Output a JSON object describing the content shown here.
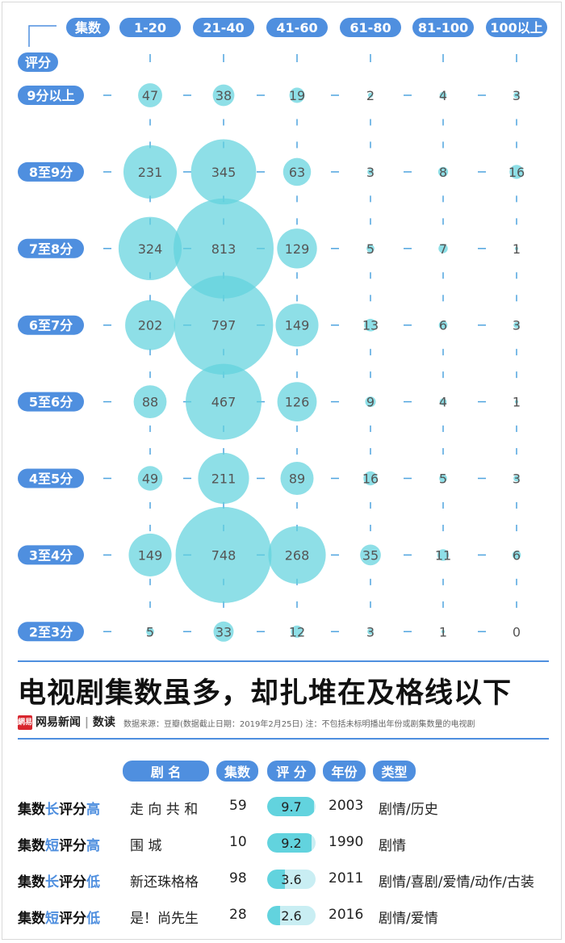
{
  "chart_data": {
    "type": "bubble-matrix",
    "corner_label": "集数",
    "row_axis_label": "评分",
    "columns": [
      "1-20",
      "21-40",
      "41-60",
      "61-80",
      "81-100",
      "100以上"
    ],
    "rows": [
      "9分以上",
      "8至9分",
      "7至8分",
      "6至7分",
      "5至6分",
      "4至5分",
      "3至4分",
      "2至3分"
    ],
    "values": [
      [
        47,
        38,
        19,
        2,
        4,
        3
      ],
      [
        231,
        345,
        63,
        3,
        8,
        16
      ],
      [
        324,
        813,
        129,
        5,
        7,
        1
      ],
      [
        202,
        797,
        149,
        13,
        6,
        3
      ],
      [
        88,
        467,
        126,
        9,
        4,
        1
      ],
      [
        49,
        211,
        89,
        16,
        5,
        3
      ],
      [
        149,
        748,
        268,
        35,
        11,
        6
      ],
      [
        5,
        33,
        12,
        3,
        1,
        0
      ]
    ],
    "bubble_color": "#62d3de"
  },
  "title": "电视剧集数虽多，却扎堆在及格线以下",
  "brand": {
    "logo": "網易",
    "name": "网易新闻",
    "sub": "数读"
  },
  "source_note": "数据来源：豆瓣(数据截止日期：2019年2月25日)   注：不包括未标明播出年份或剧集数量的电视剧",
  "table": {
    "headers": [
      "剧    名",
      "集数",
      "评 分",
      "年份",
      "类型"
    ],
    "rows": [
      {
        "label_pre": "集数",
        "label_hl1": "长",
        "label_mid": "评分",
        "label_hl2": "高",
        "name": "走 向 共 和",
        "episodes": "59",
        "score": 9.7,
        "score_text": "9.7",
        "year": "2003",
        "genre": "剧情/历史"
      },
      {
        "label_pre": "集数",
        "label_hl1": "短",
        "label_mid": "评分",
        "label_hl2": "高",
        "name": "围          城",
        "episodes": "10",
        "score": 9.2,
        "score_text": "9.2",
        "year": "1990",
        "genre": "剧情"
      },
      {
        "label_pre": "集数",
        "label_hl1": "长",
        "label_mid": "评分",
        "label_hl2": "低",
        "name": "新还珠格格",
        "episodes": "98",
        "score": 3.6,
        "score_text": "3.6",
        "year": "2011",
        "genre": "剧情/喜剧/爱情/动作/古装"
      },
      {
        "label_pre": "集数",
        "label_hl1": "短",
        "label_mid": "评分",
        "label_hl2": "低",
        "name": "是！尚先生",
        "episodes": "28",
        "score": 2.6,
        "score_text": "2.6",
        "year": "2016",
        "genre": "剧情/爱情"
      }
    ]
  }
}
